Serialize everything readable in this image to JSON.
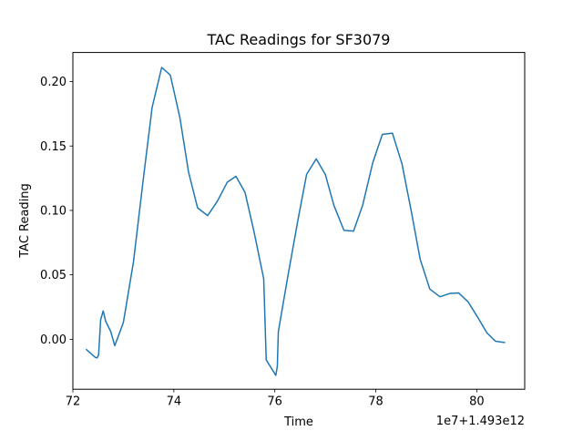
{
  "chart_data": {
    "type": "line",
    "title": "TAC Readings for SF3079",
    "xlabel": "Time",
    "ylabel": "TAC Reading",
    "x_offset_label": "1e7+1.493e12",
    "xlim": [
      72.0,
      80.95
    ],
    "ylim": [
      -0.0388,
      0.2226
    ],
    "x_ticks": [
      72,
      74,
      76,
      78,
      80
    ],
    "x_tick_labels": [
      "72",
      "74",
      "76",
      "78",
      "80"
    ],
    "y_ticks": [
      0.0,
      0.05,
      0.1,
      0.15,
      0.2
    ],
    "y_tick_labels": [
      "0.00",
      "0.05",
      "0.10",
      "0.15",
      "0.20"
    ],
    "grid": false,
    "legend": "none",
    "series": [
      {
        "color": "#1f77b4",
        "x": [
          72.27,
          72.44,
          72.48,
          72.51,
          72.55,
          72.6,
          72.65,
          72.75,
          72.83,
          73.0,
          73.2,
          73.4,
          73.57,
          73.76,
          73.93,
          74.12,
          74.29,
          74.47,
          74.67,
          74.86,
          75.06,
          75.23,
          75.41,
          75.58,
          75.78,
          75.83,
          76.02,
          76.05,
          76.07,
          76.25,
          76.46,
          76.63,
          76.82,
          77.0,
          77.17,
          77.37,
          77.56,
          77.74,
          77.94,
          78.13,
          78.33,
          78.52,
          78.71,
          78.88,
          79.07,
          79.27,
          79.46,
          79.64,
          79.83,
          80.02,
          80.2,
          80.37,
          80.55
        ],
        "y": [
          -0.008,
          -0.014,
          -0.0145,
          -0.012,
          0.015,
          0.022,
          0.014,
          0.006,
          -0.005,
          0.013,
          0.06,
          0.126,
          0.18,
          0.211,
          0.205,
          0.172,
          0.13,
          0.102,
          0.096,
          0.107,
          0.122,
          0.1265,
          0.114,
          0.085,
          0.047,
          -0.016,
          -0.028,
          -0.021,
          0.006,
          0.047,
          0.093,
          0.128,
          0.14,
          0.128,
          0.104,
          0.0845,
          0.084,
          0.104,
          0.137,
          0.159,
          0.16,
          0.136,
          0.098,
          0.062,
          0.039,
          0.033,
          0.0355,
          0.036,
          0.029,
          0.017,
          0.005,
          -0.0015,
          -0.0025
        ]
      }
    ]
  }
}
